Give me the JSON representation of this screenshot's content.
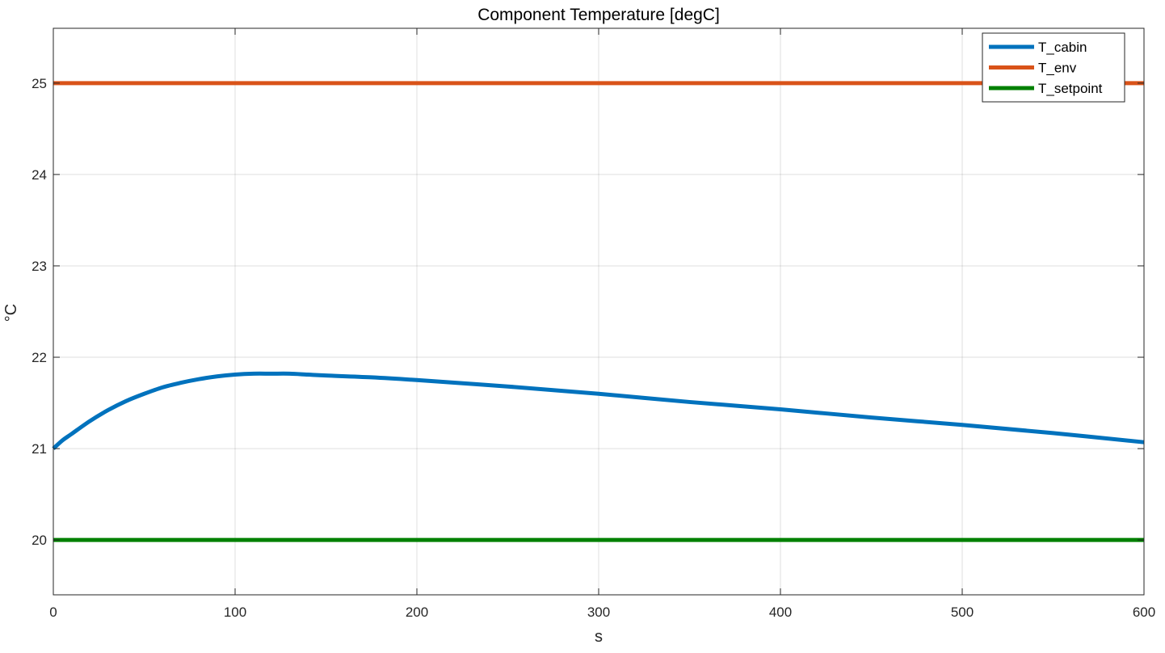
{
  "chart_data": {
    "type": "line",
    "title": "Component Temperature [degC]",
    "xlabel": "s",
    "ylabel": "°C",
    "xlim": [
      0,
      600
    ],
    "ylim": [
      19.4,
      25.6
    ],
    "xticks": [
      0,
      100,
      200,
      300,
      400,
      500,
      600
    ],
    "yticks": [
      20,
      21,
      22,
      23,
      24,
      25
    ],
    "xtick_labels": [
      "0",
      "100",
      "200",
      "300",
      "400",
      "500",
      "600"
    ],
    "ytick_labels": [
      "20",
      "21",
      "22",
      "23",
      "24",
      "25"
    ],
    "grid": true,
    "legend_position": "top-right",
    "x": [
      0,
      5,
      10,
      20,
      30,
      40,
      50,
      60,
      70,
      80,
      90,
      100,
      110,
      120,
      130,
      140,
      150,
      175,
      200,
      250,
      300,
      350,
      400,
      450,
      500,
      550,
      600
    ],
    "series": [
      {
        "name": "T_cabin",
        "color": "#0072BD",
        "values": [
          21.0,
          21.09,
          21.16,
          21.3,
          21.42,
          21.52,
          21.6,
          21.67,
          21.72,
          21.76,
          21.79,
          21.81,
          21.82,
          21.82,
          21.82,
          21.81,
          21.8,
          21.78,
          21.75,
          21.68,
          21.6,
          21.51,
          21.43,
          21.34,
          21.26,
          21.17,
          21.07
        ]
      },
      {
        "name": "T_env",
        "color": "#D95319",
        "values": [
          25,
          25,
          25,
          25,
          25,
          25,
          25,
          25,
          25,
          25,
          25,
          25,
          25,
          25,
          25,
          25,
          25,
          25,
          25,
          25,
          25,
          25,
          25,
          25,
          25,
          25,
          25
        ]
      },
      {
        "name": "T_setpoint",
        "color": "#008000",
        "values": [
          20,
          20,
          20,
          20,
          20,
          20,
          20,
          20,
          20,
          20,
          20,
          20,
          20,
          20,
          20,
          20,
          20,
          20,
          20,
          20,
          20,
          20,
          20,
          20,
          20,
          20,
          20
        ]
      }
    ]
  }
}
